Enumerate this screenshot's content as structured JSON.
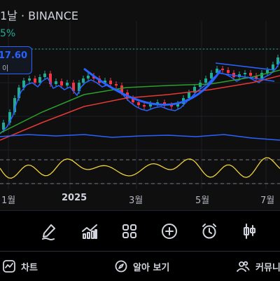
{
  "header": {
    "title": "1날 · BINANCE",
    "change_text": "5%"
  },
  "price_label": {
    "value": "17.60",
    "sub": "이"
  },
  "x_axis": {
    "labels": [
      "1월",
      "2025",
      "3월",
      "5월",
      "7월"
    ]
  },
  "colors": {
    "background": "#0f0f10",
    "up": "#22ab94",
    "down": "#f23645",
    "accent": "#2962ff",
    "ma_blue": "#2962ff",
    "ma_green": "#2ca02c",
    "ma_red": "#e53935",
    "rsi": "#f0d23c"
  },
  "toolbar": {
    "tools": [
      "pen-icon",
      "indicators-icon",
      "grid-icon",
      "add-icon",
      "alarm-icon",
      "candles-icon"
    ]
  },
  "bottom_nav": {
    "chart_label": "차트",
    "explore_label": "알아 보기",
    "community_label": "커뮤니"
  }
}
